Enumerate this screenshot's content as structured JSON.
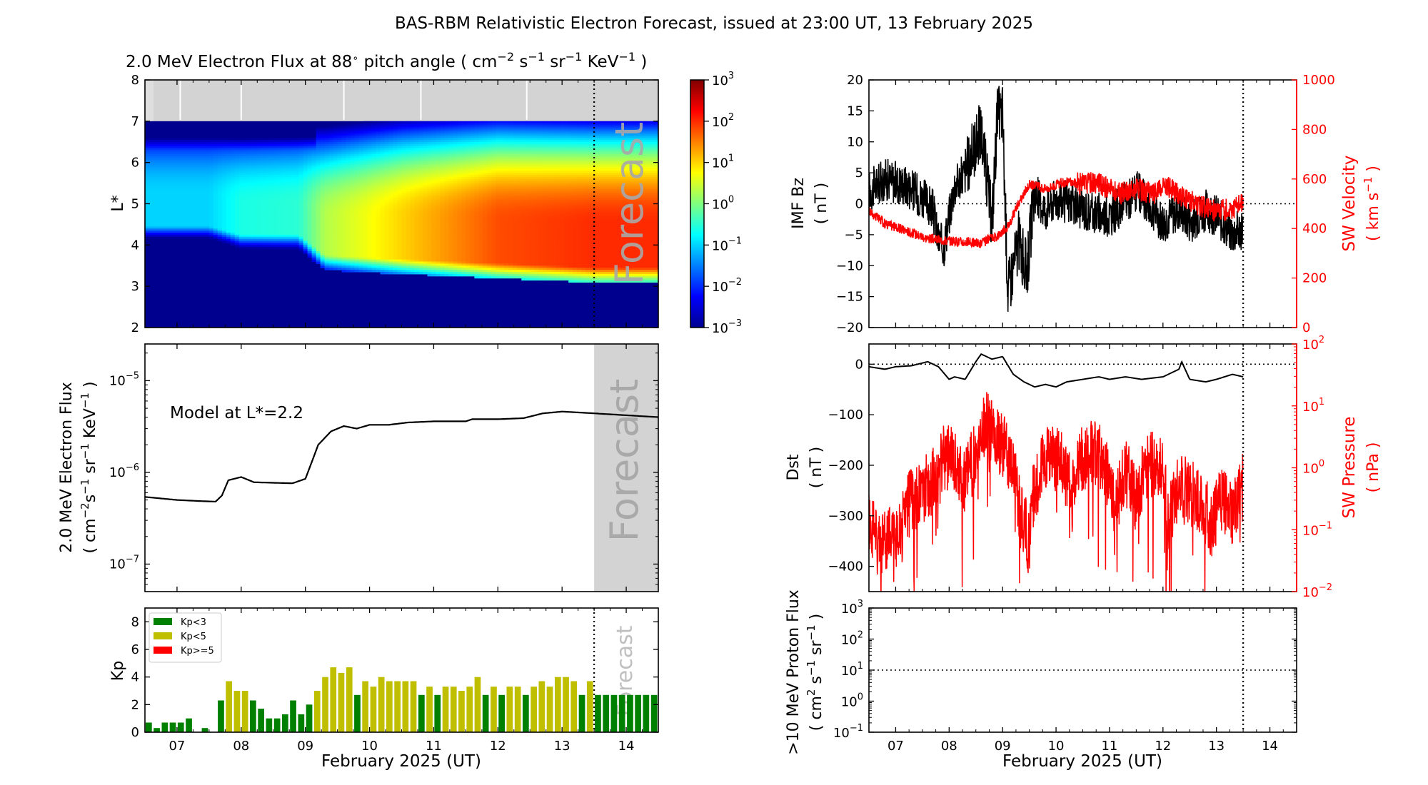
{
  "figure": {
    "title": "BAS-RBM Relativistic Electron Forecast, issued at 23:00 UT, 13 February 2025"
  },
  "colors": {
    "red": "#ff0000",
    "black": "#000000",
    "forecast_shade": "#d3d3d3",
    "forecast_text": "#a9a9a9",
    "kp_green": "#008000",
    "kp_yellow": "#bfbf00",
    "kp_red": "#ff0000"
  },
  "xaxis": {
    "label": "February 2025 (UT)",
    "ticks": [
      "07",
      "08",
      "09",
      "10",
      "11",
      "12",
      "13",
      "14"
    ],
    "tick_days": [
      7,
      8,
      9,
      10,
      11,
      12,
      13,
      14
    ],
    "start_day": 6.5,
    "end_day": 14.5,
    "forecast_day": 13.5
  },
  "forecast_label": "Forecast",
  "chart_data": [
    {
      "id": "flux_heatmap",
      "type": "heatmap",
      "title_parts": [
        "2.0 MeV Electron Flux at 88",
        "∘",
        " pitch angle ( cm",
        "−2",
        " s",
        "−1",
        " sr",
        "−1",
        " KeV",
        "−1",
        " )"
      ],
      "ylabel": "L*",
      "ylim": [
        2,
        8
      ],
      "yticks": [
        "2",
        "3",
        "4",
        "5",
        "6",
        "7",
        "8"
      ],
      "colorbar": {
        "scale": "log",
        "range_exp": [
          -3,
          3
        ],
        "ticks": [
          "10",
          "10",
          "10",
          "10",
          "10",
          "10",
          "10"
        ],
        "tick_exps": [
          "−3",
          "−2",
          "−1",
          "0",
          "1",
          "2",
          "3"
        ]
      },
      "no_data_above_L": 7,
      "belt_profile_days": [
        6.5,
        7.5,
        8.0,
        8.9,
        9.3,
        10.5,
        12.0,
        13.5,
        14.5
      ],
      "belt_log_flux_peak": [
        -1.0,
        -1.0,
        -0.6,
        -0.5,
        0.3,
        1.0,
        1.8,
        2.0,
        2.0
      ],
      "belt_peak_L": [
        5.2,
        5.2,
        5.0,
        5.0,
        4.7,
        4.7,
        4.6,
        4.5,
        4.5
      ],
      "belt_inner_edge_L": [
        4.1,
        4.1,
        3.9,
        3.9,
        3.4,
        3.3,
        3.2,
        3.1,
        3.1
      ]
    },
    {
      "id": "flux_timeseries",
      "type": "line",
      "yscale": "log",
      "ylabel_line1": "2.0 MeV Electron Flux",
      "ylabel_line2_parts": [
        "( cm",
        "−2",
        "s",
        "−1",
        " sr",
        "−1",
        " KeV",
        "−1",
        " )"
      ],
      "annotation": "Model at L*=2.2",
      "ylim_exp": [
        -7.3,
        -4.6
      ],
      "yticks": [
        {
          "base": "10",
          "exp": "−7"
        },
        {
          "base": "10",
          "exp": "−6"
        },
        {
          "base": "10",
          "exp": "−5"
        }
      ],
      "x": [
        6.5,
        7.0,
        7.4,
        7.6,
        7.7,
        7.8,
        8.0,
        8.2,
        8.5,
        8.8,
        9.0,
        9.1,
        9.2,
        9.4,
        9.6,
        9.8,
        10.0,
        10.3,
        10.6,
        11.0,
        11.5,
        11.6,
        12.0,
        12.4,
        12.7,
        13.0,
        13.5,
        14.5
      ],
      "y": [
        5.4e-07,
        5e-07,
        4.85e-07,
        4.8e-07,
        5.6e-07,
        8.2e-07,
        8.9e-07,
        7.8e-07,
        7.7e-07,
        7.6e-07,
        8.5e-07,
        1.3e-06,
        2e-06,
        2.8e-06,
        3.2e-06,
        3e-06,
        3.3e-06,
        3.3e-06,
        3.5e-06,
        3.6e-06,
        3.6e-06,
        3.8e-06,
        3.8e-06,
        3.9e-06,
        4.4e-06,
        4.6e-06,
        4.4e-06,
        4e-06
      ]
    },
    {
      "id": "kp_bars",
      "type": "bar",
      "ylabel": "Kp",
      "ylim": [
        0,
        9
      ],
      "yticks": [
        "0",
        "2",
        "4",
        "6",
        "8"
      ],
      "bar_width_days": 0.125,
      "start_day": 6.5,
      "values": [
        0.7,
        0.3,
        0.7,
        0.7,
        0.7,
        1.0,
        0.0,
        0.3,
        0.0,
        2.3,
        3.7,
        3.0,
        3.0,
        2.3,
        1.7,
        1.0,
        1.0,
        1.3,
        2.3,
        1.3,
        2.0,
        3.0,
        4.0,
        4.7,
        4.3,
        4.7,
        2.7,
        3.7,
        3.3,
        4.0,
        3.7,
        3.7,
        3.7,
        3.7,
        2.7,
        3.3,
        2.7,
        3.3,
        3.3,
        3.0,
        3.3,
        4.0,
        2.7,
        3.3,
        2.7,
        3.3,
        3.3,
        2.7,
        3.3,
        3.7,
        3.3,
        4.0,
        4.0,
        3.7,
        2.7,
        3.7,
        2.7,
        2.7,
        2.7,
        2.7,
        2.7,
        2.7,
        2.7,
        2.7
      ],
      "legend": [
        {
          "label": "Kp<3",
          "color": "#008000"
        },
        {
          "label": "Kp<5",
          "color": "#bfbf00"
        },
        {
          "label": "Kp>=5",
          "color": "#ff0000"
        }
      ]
    },
    {
      "id": "imf_sw_velocity",
      "type": "line",
      "series": [
        {
          "name": "IMF Bz",
          "axis": "left",
          "color": "#000000",
          "x": [
            6.5,
            6.8,
            7.2,
            7.5,
            7.7,
            7.8,
            7.9,
            8.0,
            8.1,
            8.3,
            8.5,
            8.6,
            8.8,
            8.9,
            9.0,
            9.05,
            9.1,
            9.2,
            9.3,
            9.45,
            9.6,
            9.8,
            10.0,
            10.5,
            11.0,
            11.5,
            12.0,
            12.3,
            12.5,
            12.8,
            13.0,
            13.3,
            13.5
          ],
          "y": [
            2,
            4,
            3,
            1,
            -1,
            -6,
            -7,
            -2,
            3,
            5,
            10,
            12,
            -3,
            14,
            15,
            -1,
            -14,
            -10,
            -6,
            -11,
            2,
            -1,
            1,
            -1,
            -2,
            2,
            -3,
            -1,
            -3,
            -1,
            -2,
            -5,
            -4
          ]
        },
        {
          "name": "SW Velocity",
          "axis": "right",
          "color": "#ff0000",
          "x": [
            6.5,
            6.8,
            7.2,
            7.6,
            8.0,
            8.3,
            8.6,
            8.9,
            9.1,
            9.3,
            9.5,
            9.8,
            10.2,
            10.5,
            10.7,
            10.9,
            11.2,
            11.5,
            11.8,
            12.1,
            12.3,
            12.6,
            13.0,
            13.3,
            13.5
          ],
          "y": [
            470,
            420,
            390,
            360,
            350,
            345,
            340,
            370,
            410,
            500,
            580,
            560,
            590,
            580,
            590,
            570,
            540,
            560,
            540,
            570,
            540,
            500,
            470,
            480,
            510
          ]
        }
      ],
      "left": {
        "label_line1": "IMF Bz",
        "label_line2": "( nT )",
        "ylim": [
          -20,
          20
        ],
        "yticks": [
          "−20",
          "−15",
          "−10",
          "−5",
          "0",
          "5",
          "10",
          "15",
          "20"
        ]
      },
      "right": {
        "label_line1": "SW Velocity",
        "label_line2_parts": [
          "( km s",
          "−1",
          " )"
        ],
        "ylim": [
          0,
          1000
        ],
        "yticks": [
          "0",
          "200",
          "400",
          "600",
          "800",
          "1000"
        ]
      }
    },
    {
      "id": "dst_sw_pressure",
      "type": "line",
      "series": [
        {
          "name": "Dst",
          "axis": "left",
          "color": "#000000",
          "x": [
            6.5,
            6.8,
            7.0,
            7.3,
            7.6,
            7.8,
            8.0,
            8.1,
            8.3,
            8.5,
            8.6,
            8.8,
            9.0,
            9.2,
            9.4,
            9.6,
            9.8,
            10.0,
            10.2,
            10.5,
            10.8,
            11.0,
            11.3,
            11.6,
            12.0,
            12.3,
            12.35,
            12.5,
            12.8,
            13.0,
            13.3,
            13.5
          ],
          "y": [
            -5,
            -10,
            -5,
            -3,
            5,
            -5,
            -30,
            -25,
            -30,
            5,
            20,
            10,
            15,
            -20,
            -35,
            -45,
            -40,
            -45,
            -35,
            -30,
            -25,
            -30,
            -25,
            -30,
            -25,
            -10,
            5,
            -30,
            -35,
            -30,
            -20,
            -25
          ]
        },
        {
          "name": "SW Pressure",
          "axis": "right",
          "color": "#ff0000",
          "x": [
            6.5,
            6.7,
            6.9,
            7.1,
            7.3,
            7.5,
            7.7,
            7.9,
            8.1,
            8.3,
            8.5,
            8.7,
            8.9,
            9.1,
            9.3,
            9.5,
            9.7,
            9.9,
            10.1,
            10.3,
            10.5,
            10.7,
            10.9,
            11.1,
            11.3,
            11.5,
            11.7,
            11.9,
            12.1,
            12.3,
            12.5,
            12.7,
            12.9,
            13.1,
            13.3,
            13.5
          ],
          "y": [
            0.15,
            0.04,
            0.1,
            0.08,
            0.3,
            0.4,
            0.6,
            1.5,
            1.2,
            0.6,
            1.5,
            5.0,
            3.0,
            1.5,
            0.2,
            0.05,
            0.8,
            1.5,
            1.2,
            0.3,
            1.5,
            1.8,
            1.2,
            0.1,
            0.8,
            0.3,
            1.0,
            1.2,
            0.08,
            0.5,
            0.4,
            0.3,
            0.1,
            0.3,
            0.2,
            0.5
          ]
        }
      ],
      "left": {
        "label_line1": "Dst",
        "label_line2": "( nT )",
        "ylim": [
          -450,
          40
        ],
        "yticks": [
          "−400",
          "−300",
          "−200",
          "−100",
          "0"
        ]
      },
      "right": {
        "label_line1": "SW Pressure",
        "label_line2": "( nPa )",
        "ylim_exp": [
          -2,
          2
        ],
        "yticks": [
          {
            "base": "10",
            "exp": "−2"
          },
          {
            "base": "10",
            "exp": "−1"
          },
          {
            "base": "10",
            "exp": "0"
          },
          {
            "base": "10",
            "exp": "1"
          },
          {
            "base": "10",
            "exp": "2"
          }
        ]
      }
    },
    {
      "id": "proton_flux",
      "type": "line",
      "yscale": "log",
      "series": [],
      "ylabel_line1": ">10 MeV Proton Flux",
      "ylabel_line2_parts": [
        "( cm",
        "2",
        " s",
        "−1",
        " sr",
        "−1",
        " )"
      ],
      "ylim_exp": [
        -1,
        3
      ],
      "threshold": 10,
      "yticks": [
        {
          "base": "10",
          "exp": "−1"
        },
        {
          "base": "10",
          "exp": "0"
        },
        {
          "base": "10",
          "exp": "1"
        },
        {
          "base": "10",
          "exp": "2"
        },
        {
          "base": "10",
          "exp": "3"
        }
      ]
    }
  ]
}
